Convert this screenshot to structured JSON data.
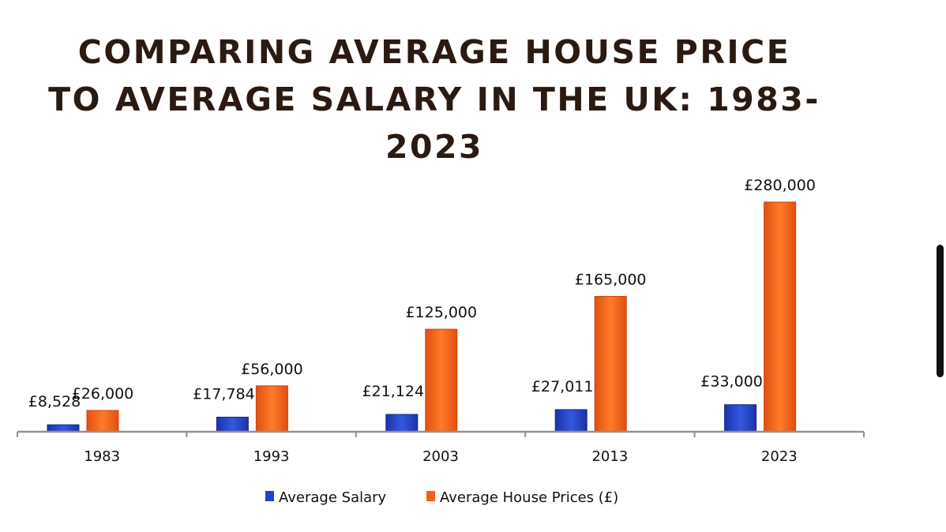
{
  "chart_data": {
    "type": "bar",
    "title": "COMPARING AVERAGE HOUSE PRICE TO AVERAGE SALARY IN THE UK: 1983-2023",
    "categories": [
      "1983",
      "1993",
      "2003",
      "2013",
      "2023"
    ],
    "series": [
      {
        "name": "Average Salary",
        "values": [
          8528,
          17784,
          21124,
          27011,
          33000
        ],
        "labels": [
          "£8,528",
          "£17,784",
          "£21,124",
          "£27,011",
          "£33,000"
        ],
        "color": "#2244cc"
      },
      {
        "name": "Average House Prices (£)",
        "values": [
          26000,
          56000,
          125000,
          165000,
          280000
        ],
        "labels": [
          "£26,000",
          "£56,000",
          "£125,000",
          "£165,000",
          "£280,000"
        ],
        "color": "#f2621a"
      }
    ],
    "xlabel": "",
    "ylabel": "",
    "ylim": [
      0,
      280000
    ],
    "grid": false,
    "legend": "bottom"
  },
  "scrollbar": {
    "color": "#111111"
  }
}
